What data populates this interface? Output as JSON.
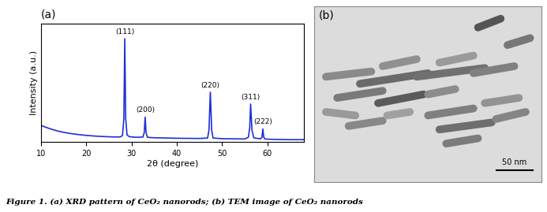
{
  "chart_data": {
    "type": "line",
    "title": "(a)",
    "x_label": "2θ (degree)",
    "y_label": "Intensity (a.u.)",
    "color": "#1f2fd6",
    "tick_labels": "x",
    "xlim": [
      10,
      68
    ],
    "xticks": [
      10,
      20,
      30,
      40,
      50,
      60
    ],
    "ylim": [
      0,
      100
    ],
    "x": [
      10,
      11,
      12,
      13,
      14,
      15,
      16,
      17,
      18,
      19,
      20,
      22,
      24,
      26,
      27.5,
      28.0,
      28.3,
      28.5,
      28.7,
      29.0,
      29.5,
      31,
      32.5,
      32.8,
      33.0,
      33.2,
      33.5,
      35,
      40,
      45,
      46.8,
      47.1,
      47.4,
      47.7,
      48.0,
      50,
      55,
      55.8,
      56.1,
      56.3,
      56.6,
      57,
      58.5,
      58.8,
      59.0,
      59.2,
      59.5,
      62,
      65,
      68
    ],
    "values": [
      14,
      12.5,
      11.2,
      10,
      9,
      8.2,
      7.5,
      6.9,
      6.4,
      6.0,
      5.6,
      5.0,
      4.6,
      4.3,
      4.3,
      5.5,
      20,
      87,
      20,
      6,
      4.5,
      4.0,
      4.2,
      8,
      21,
      8,
      4,
      3.6,
      3.2,
      3.0,
      3.4,
      10,
      42,
      10,
      3.4,
      2.8,
      2.6,
      4,
      12,
      32,
      10,
      3.5,
      2.7,
      4,
      11,
      4,
      2.5,
      2.2,
      2.0,
      2.0
    ],
    "annotations": [
      {
        "text": "(111)",
        "x": 28.5,
        "y": 87
      },
      {
        "text": "(200)",
        "x": 33.0,
        "y": 21
      },
      {
        "text": "(220)",
        "x": 47.4,
        "y": 42
      },
      {
        "text": "(311)",
        "x": 56.3,
        "y": 32
      },
      {
        "text": "(222)",
        "x": 59.0,
        "y": 11
      }
    ]
  },
  "image": {
    "panel_label": "(b)",
    "scale_bar": "50 nm"
  },
  "caption": "Figure 1. (a) XRD pattern of CeO₂ nanorods; (b) TEM image of CeO₂ nanorods"
}
